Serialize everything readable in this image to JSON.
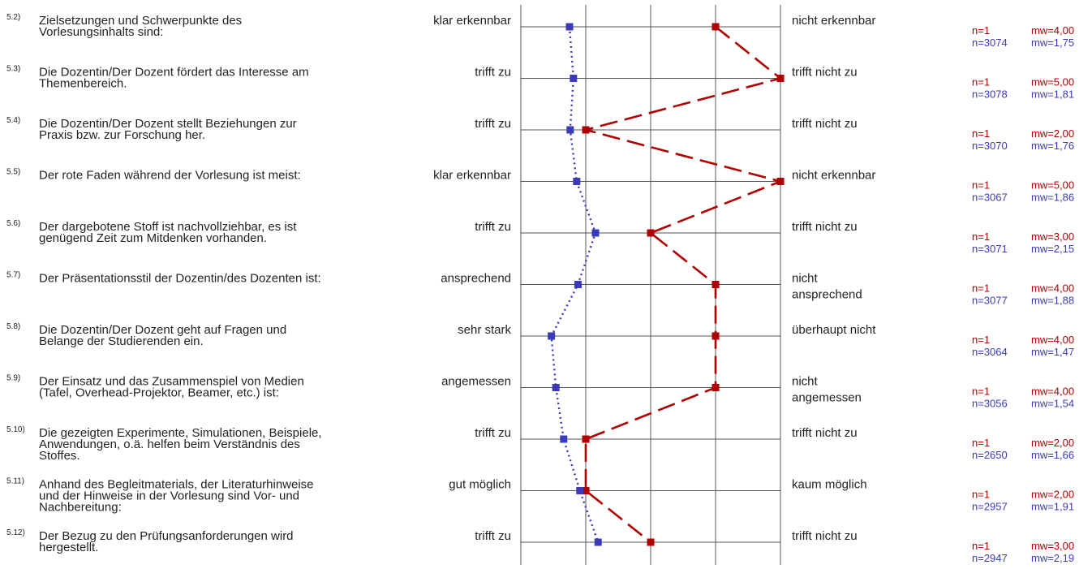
{
  "colors": {
    "course": "#b00000",
    "comparison": "#3b3bb8",
    "grid": "#555555",
    "text": "#222222"
  },
  "chart_data": {
    "type": "line",
    "scale": [
      1,
      2,
      3,
      4,
      5
    ],
    "grid": true,
    "series": [
      {
        "key": "course",
        "style": "dashed",
        "values": [
          4.0,
          5.0,
          2.0,
          5.0,
          3.0,
          4.0,
          4.0,
          4.0,
          2.0,
          2.0,
          3.0
        ]
      },
      {
        "key": "comparison",
        "style": "dotted",
        "values": [
          1.75,
          1.81,
          1.76,
          1.86,
          2.15,
          1.88,
          1.47,
          1.54,
          1.66,
          1.91,
          2.19
        ]
      }
    ],
    "items": [
      {
        "num": "5.2)",
        "text": [
          "Zielsetzungen und Schwerpunkte des",
          "Vorlesungsinhalts sind:"
        ],
        "left": [
          "klar erkennbar"
        ],
        "right": [
          "nicht erkennbar"
        ],
        "n1": "n=1",
        "mw1": "mw=4,00",
        "n2": "n=3074",
        "mw2": "mw=1,75"
      },
      {
        "num": "5.3)",
        "text": [
          "Die Dozentin/Der Dozent fördert das Interesse am",
          "Themenbereich."
        ],
        "left": [
          "trifft zu"
        ],
        "right": [
          "trifft nicht zu"
        ],
        "n1": "n=1",
        "mw1": "mw=5,00",
        "n2": "n=3078",
        "mw2": "mw=1,81"
      },
      {
        "num": "5.4)",
        "text": [
          "Die Dozentin/Der Dozent stellt Beziehungen zur",
          "Praxis bzw. zur Forschung her."
        ],
        "left": [
          "trifft zu"
        ],
        "right": [
          "trifft nicht zu"
        ],
        "n1": "n=1",
        "mw1": "mw=2,00",
        "n2": "n=3070",
        "mw2": "mw=1,76"
      },
      {
        "num": "5.5)",
        "text": [
          "Der rote Faden während der Vorlesung ist meist:"
        ],
        "left": [
          "klar erkennbar"
        ],
        "right": [
          "nicht erkennbar"
        ],
        "n1": "n=1",
        "mw1": "mw=5,00",
        "n2": "n=3067",
        "mw2": "mw=1,86"
      },
      {
        "num": "5.6)",
        "text": [
          "Der dargebotene Stoff ist nachvollziehbar, es ist",
          "genügend Zeit zum Mitdenken vorhanden."
        ],
        "left": [
          "trifft zu"
        ],
        "right": [
          "trifft nicht zu"
        ],
        "n1": "n=1",
        "mw1": "mw=3,00",
        "n2": "n=3071",
        "mw2": "mw=2,15"
      },
      {
        "num": "5.7)",
        "text": [
          "Der Präsentationsstil der Dozentin/des Dozenten ist:"
        ],
        "left": [
          "ansprechend"
        ],
        "right": [
          "nicht",
          "ansprechend"
        ],
        "n1": "n=1",
        "mw1": "mw=4,00",
        "n2": "n=3077",
        "mw2": "mw=1,88"
      },
      {
        "num": "5.8)",
        "text": [
          "Die Dozentin/Der Dozent geht auf Fragen und",
          "Belange der Studierenden ein."
        ],
        "left": [
          "sehr stark"
        ],
        "right": [
          "überhaupt nicht"
        ],
        "n1": "n=1",
        "mw1": "mw=4,00",
        "n2": "n=3064",
        "mw2": "mw=1,47"
      },
      {
        "num": "5.9)",
        "text": [
          "Der Einsatz und das Zusammenspiel von Medien",
          "(Tafel, Overhead-Projektor, Beamer, etc.) ist:"
        ],
        "left": [
          "angemessen"
        ],
        "right": [
          "nicht",
          "angemessen"
        ],
        "n1": "n=1",
        "mw1": "mw=4,00",
        "n2": "n=3056",
        "mw2": "mw=1,54"
      },
      {
        "num": "5.10)",
        "text": [
          "Die gezeigten Experimente, Simulationen, Beispiele,",
          "Anwendungen, o.ä. helfen beim Verständnis des",
          "Stoffes."
        ],
        "left": [
          "trifft zu"
        ],
        "right": [
          "trifft nicht zu"
        ],
        "n1": "n=1",
        "mw1": "mw=2,00",
        "n2": "n=2650",
        "mw2": "mw=1,66"
      },
      {
        "num": "5.11)",
        "text": [
          "Anhand des Begleitmaterials, der Literaturhinweise",
          "und der Hinweise in der Vorlesung sind Vor- und",
          "Nachbereitung:"
        ],
        "left": [
          "gut möglich"
        ],
        "right": [
          "kaum möglich"
        ],
        "n1": "n=1",
        "mw1": "mw=2,00",
        "n2": "n=2957",
        "mw2": "mw=1,91"
      },
      {
        "num": "5.12)",
        "text": [
          "Der Bezug zu den Prüfungsanforderungen wird",
          "hergestellt."
        ],
        "left": [
          "trifft zu"
        ],
        "right": [
          "trifft nicht zu"
        ],
        "n1": "n=1",
        "mw1": "mw=3,00",
        "n2": "n=2947",
        "mw2": "mw=2,19"
      }
    ]
  }
}
